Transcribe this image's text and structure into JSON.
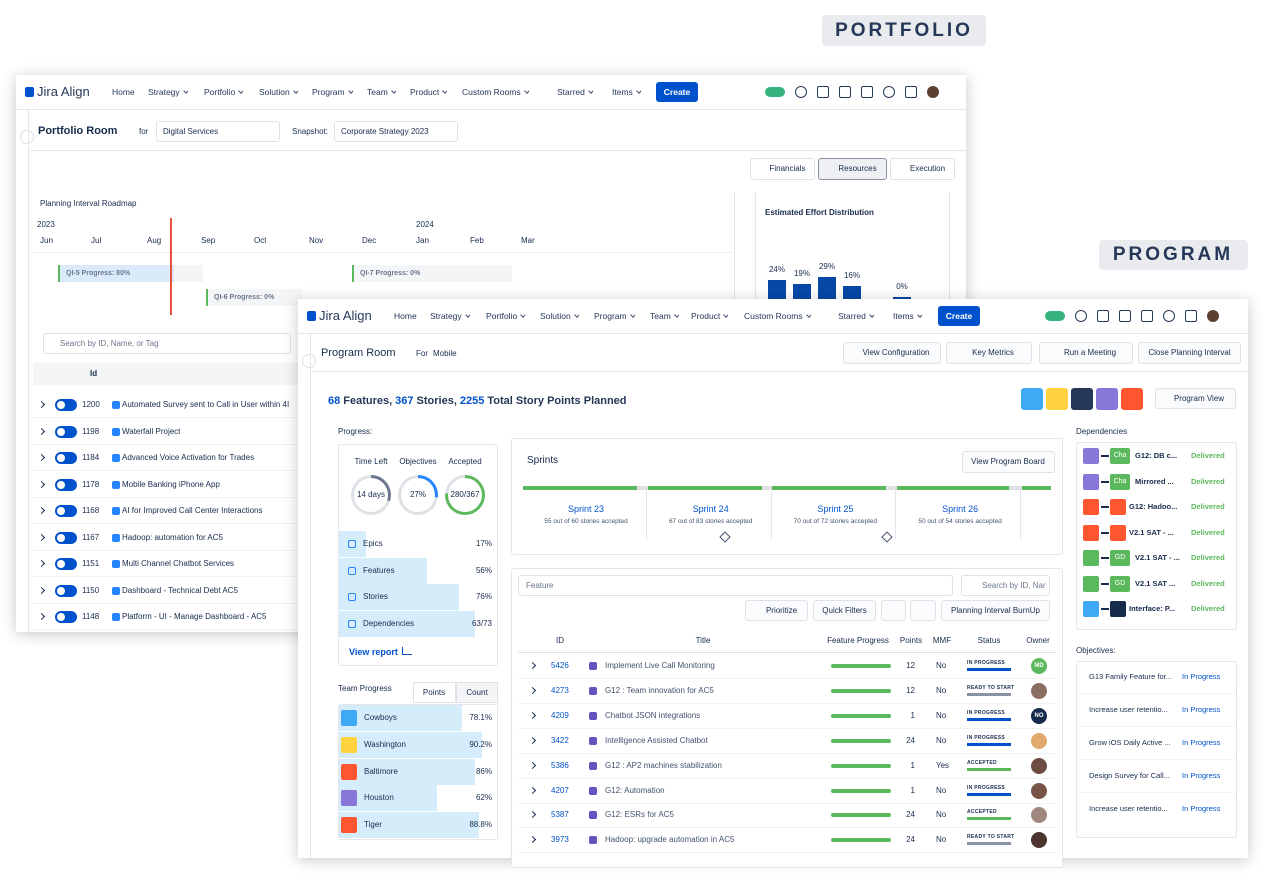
{
  "badges": {
    "portfolio": "PORTFOLIO",
    "program": "PROGRAM"
  },
  "portfolio": {
    "brand": "Jira Align",
    "nav": [
      "Home",
      "Strategy",
      "Portfolio",
      "Solution",
      "Program",
      "Team",
      "Product",
      "Custom Rooms",
      "Starred",
      "Items"
    ],
    "create": "Create",
    "room_title": "Portfolio Room",
    "for_label": "for",
    "for_value": "Digital Services",
    "snapshot_label": "Snapshot:",
    "snapshot_value": "Corporate Strategy 2023",
    "tabs": [
      "Financials",
      "Resources",
      "Execution"
    ],
    "roadmap": {
      "title": "Planning Interval Roadmap",
      "years": [
        "2023",
        "2024"
      ],
      "months": [
        "Jun",
        "Jul",
        "Aug",
        "Sep",
        "Oct",
        "Nov",
        "Dec",
        "Jan",
        "Feb",
        "Mar"
      ],
      "bars": [
        "QI-5 Progress: 80%",
        "QI-6 Progress: 0%",
        "QI-7 Progress: 0%"
      ]
    },
    "effort": {
      "title": "Estimated Effort Distribution",
      "labels": [
        "24%",
        "19%",
        "29%",
        "16%",
        "0%"
      ]
    },
    "search": "Search by ID, Name, or Tag",
    "id_header": "Id",
    "rows": [
      [
        "1200",
        "Automated Survey sent to Call in User within 4I"
      ],
      [
        "1198",
        "Waterfall Project"
      ],
      [
        "1184",
        "Advanced Voice Activation for Trades"
      ],
      [
        "1178",
        "Mobile Banking iPhone App"
      ],
      [
        "1168",
        "AI for Improved Call Center Interactions"
      ],
      [
        "1167",
        "Hadoop: automation for AC5"
      ],
      [
        "1151",
        "Multi Channel Chatbot Services"
      ],
      [
        "1150",
        "Dashboard - Technical Debt AC5"
      ],
      [
        "1148",
        "Platform - UI - Manage Dashboard - AC5"
      ]
    ]
  },
  "program": {
    "brand": "Jira Align",
    "nav": [
      "Home",
      "Strategy",
      "Portfolio",
      "Solution",
      "Program",
      "Team",
      "Product",
      "Custom Rooms",
      "Starred",
      "Items"
    ],
    "create": "Create",
    "room_title": "Program Room",
    "for_label": "For",
    "for_value": "Mobile",
    "buttons": [
      "View Configuration",
      "Key Metrics",
      "Run a Meeting",
      "Close Planning Interval"
    ],
    "summary": {
      "features": "68",
      "features_label": "Features,",
      "stories": "367",
      "stories_label": "Stories,",
      "points": "2255",
      "points_label": "Total Story Points Planned"
    },
    "program_view": "Program View",
    "progress": {
      "label": "Progress:",
      "stats": [
        {
          "label": "Time Left",
          "value": "14 days"
        },
        {
          "label": "Objectives",
          "value": "27%"
        },
        {
          "label": "Accepted",
          "value": "280/367"
        }
      ],
      "items": [
        {
          "name": "Epics",
          "value": "17%"
        },
        {
          "name": "Features",
          "value": "56%"
        },
        {
          "name": "Stories",
          "value": "76%"
        },
        {
          "name": "Dependencies",
          "value": "63/73"
        }
      ],
      "report": "View report"
    },
    "team_progress": {
      "label": "Team Progress",
      "tabs": [
        "Points",
        "Count"
      ],
      "teams": [
        {
          "name": "Cowboys",
          "value": "78.1%"
        },
        {
          "name": "Washington",
          "value": "90.2%"
        },
        {
          "name": "Baltimore",
          "value": "86%"
        },
        {
          "name": "Houston",
          "value": "62%"
        },
        {
          "name": "Tiger",
          "value": "88.8%"
        }
      ]
    },
    "sprints": {
      "title": "Sprints",
      "board": "View Program Board",
      "list": [
        {
          "name": "Sprint 23",
          "text": "55 out of 60 stories accepted"
        },
        {
          "name": "Sprint 24",
          "text": "67 out of 83 stories accepted"
        },
        {
          "name": "Sprint 25",
          "text": "70 out of 72 stories accepted"
        },
        {
          "name": "Sprint 26",
          "text": "50 out of 54 stories accepted"
        }
      ]
    },
    "features": {
      "select": "Feature",
      "search": "Search by ID, Nar",
      "buttons": [
        "Prioritize",
        "Quick Filters",
        "Planning Interval BurnUp"
      ],
      "headers": [
        "ID",
        "Title",
        "Feature Progress",
        "Points",
        "MMF",
        "Status",
        "Owner"
      ],
      "rows": [
        {
          "id": "5426",
          "title": "Implement Live Call Monitoring",
          "points": "12",
          "mmf": "No",
          "status": "IN PROGRESS",
          "status_color": "#0052cc",
          "owner": "MD"
        },
        {
          "id": "4273",
          "title": "G12 : Team innovation for AC5",
          "points": "12",
          "mmf": "No",
          "status": "READY TO START",
          "status_color": "#8993a4"
        },
        {
          "id": "4209",
          "title": "Chatbot JSON integrations",
          "points": "1",
          "mmf": "No",
          "status": "IN PROGRESS",
          "status_color": "#0052cc",
          "owner": "NO"
        },
        {
          "id": "3422",
          "title": "Intelligence Assisted Chatbot",
          "points": "24",
          "mmf": "No",
          "status": "IN PROGRESS",
          "status_color": "#0052cc"
        },
        {
          "id": "5386",
          "title": "G12 : AP2 machines stabilization",
          "points": "1",
          "mmf": "Yes",
          "status": "ACCEPTED",
          "status_color": "#5cb85c"
        },
        {
          "id": "4207",
          "title": "G12: Automation",
          "points": "1",
          "mmf": "No",
          "status": "IN PROGRESS",
          "status_color": "#0052cc"
        },
        {
          "id": "5387",
          "title": "G12: ESRs for AC5",
          "points": "24",
          "mmf": "No",
          "status": "ACCEPTED",
          "status_color": "#5cb85c"
        },
        {
          "id": "3973",
          "title": "Hadoop: upgrade automation in AC5",
          "points": "24",
          "mmf": "No",
          "status": "READY TO START",
          "status_color": "#8993a4"
        }
      ]
    },
    "dependencies": {
      "label": "Dependencies",
      "rows": [
        {
          "tag": "Cha",
          "name": "G12: DB c...",
          "status": "Delivered"
        },
        {
          "tag": "Cha",
          "name": "Mirrored ...",
          "status": "Delivered"
        },
        {
          "name": "G12: Hadoo...",
          "status": "Delivered"
        },
        {
          "name": "V2.1 SAT - ...",
          "status": "Delivered"
        },
        {
          "tag": "GD",
          "name": "V2.1 SAT - ...",
          "status": "Delivered"
        },
        {
          "tag": "GD",
          "name": "V2.1 SAT ...",
          "status": "Delivered"
        },
        {
          "name": "Interface: P...",
          "status": "Delivered"
        }
      ]
    },
    "objectives": {
      "label": "Objectives:",
      "rows": [
        {
          "name": "G13 Family Feature for...",
          "status": "In Progress"
        },
        {
          "name": "Increase user retentio...",
          "status": "In Progress"
        },
        {
          "name": "Grow iOS Daily Active ...",
          "status": "In Progress"
        },
        {
          "name": "Design Survey for Call...",
          "status": "In Progress"
        },
        {
          "name": "Increase user retentio...",
          "status": "In Progress"
        }
      ]
    }
  }
}
